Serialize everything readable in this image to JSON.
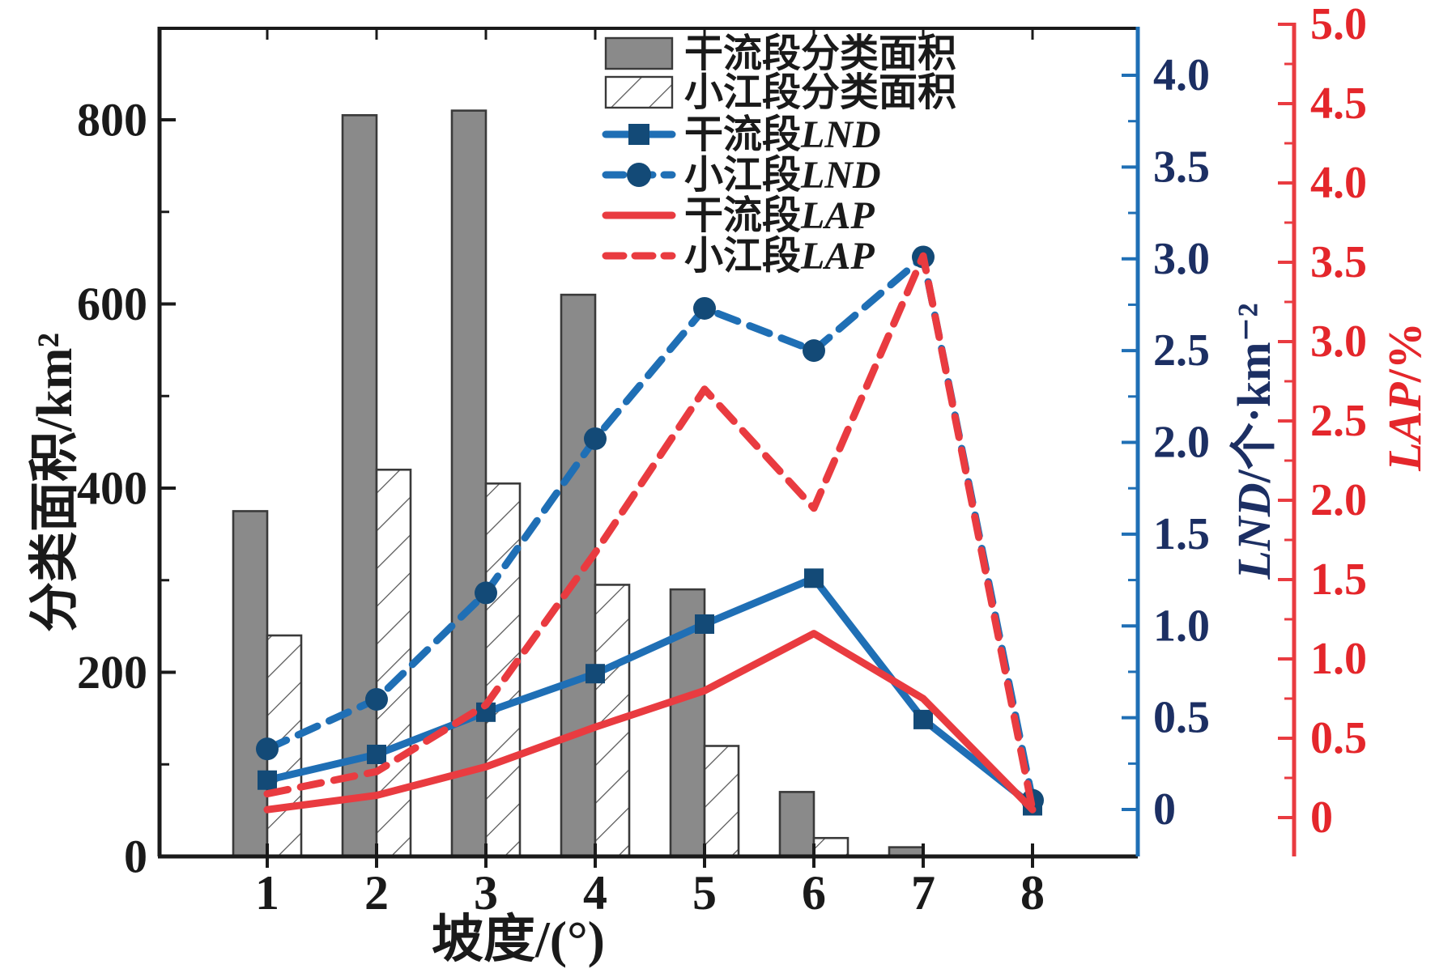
{
  "figure": {
    "background": "#ffffff",
    "xlabel": "坡度/(°)",
    "left_axis_label": "分类面积/km²",
    "blue_axis_label": "LND/个·km⁻²",
    "red_axis_label": "LAP/%"
  },
  "colors": {
    "blue_line": "#1f6fb5",
    "blue_marker": "#134a77",
    "navy_text": "#1c2f63",
    "red_line": "#e93b40",
    "red_text": "#e4262b",
    "gray_bar": "#8a8a8a",
    "bar_border": "#3a3a3a",
    "black": "#1a1a1a",
    "hatch_line": "#555555"
  },
  "chart_data": {
    "type": "combo (grouped bars + lines, three y-axes)",
    "title": "",
    "xlabel": "坡度/(°)",
    "categories": [
      1,
      2,
      3,
      4,
      5,
      6,
      7,
      8
    ],
    "x_tick_labels": [
      "1",
      "2",
      "3",
      "4",
      "5",
      "6",
      "7",
      "8"
    ],
    "axes": {
      "left": {
        "label": "分类面积/km²",
        "range": [
          0,
          900
        ],
        "major_ticks": [
          0,
          200,
          400,
          600,
          800
        ],
        "tick_labels": [
          "0",
          "200",
          "400",
          "600",
          "800"
        ],
        "minor_step": 100,
        "color": "#1a1a1a"
      },
      "right_blue": {
        "label": "LND/个·km⁻²",
        "range": [
          0,
          4.25
        ],
        "major_ticks": [
          0,
          0.5,
          1.0,
          1.5,
          2.0,
          2.5,
          3.0,
          3.5,
          4.0
        ],
        "tick_labels": [
          "0",
          "0.5",
          "1.0",
          "1.5",
          "2.0",
          "2.5",
          "3.0",
          "3.5",
          "4.0"
        ],
        "minor_step": 0.25,
        "color": "#1c2f63"
      },
      "right_red": {
        "label": "LAP/%",
        "range": [
          0,
          5.0
        ],
        "major_ticks": [
          0,
          0.5,
          1.0,
          1.5,
          2.0,
          2.5,
          3.0,
          3.5,
          4.0,
          4.5,
          5.0
        ],
        "tick_labels": [
          "0",
          "0.5",
          "1.0",
          "1.5",
          "2.0",
          "2.5",
          "3.0",
          "3.5",
          "4.0",
          "4.5",
          "5.0"
        ],
        "minor_step": 0.25,
        "color": "#e4262b"
      }
    },
    "grid": false,
    "legend_position": "top-center-inside",
    "series": [
      {
        "key": "mainstream-area",
        "name": "干流段分类面积",
        "type": "bar",
        "style": "solid-gray",
        "axis": "left",
        "values": [
          375,
          805,
          810,
          610,
          290,
          70,
          10,
          0
        ]
      },
      {
        "key": "xiaojiang-area",
        "name": "小江段分类面积",
        "type": "bar",
        "style": "hatched-white",
        "axis": "left",
        "values": [
          240,
          420,
          405,
          295,
          120,
          20,
          0,
          0
        ]
      },
      {
        "key": "mainstream-lnd",
        "name": "干流段LND",
        "type": "line",
        "line_style": "solid",
        "marker": "square",
        "color_key": "blue",
        "axis": "right_blue",
        "values": [
          0.16,
          0.3,
          0.53,
          0.74,
          1.01,
          1.26,
          0.49,
          0.02
        ]
      },
      {
        "key": "xiaojiang-lnd",
        "name": "小江段LND",
        "type": "line",
        "line_style": "dashed",
        "marker": "circle",
        "color_key": "blue",
        "axis": "right_blue",
        "values": [
          0.33,
          0.6,
          1.18,
          2.02,
          2.73,
          2.5,
          3.01,
          0.05
        ]
      },
      {
        "key": "mainstream-lap",
        "name": "干流段LAP",
        "type": "line",
        "line_style": "solid",
        "marker": "none",
        "color_key": "red",
        "axis": "right_red",
        "values": [
          0.05,
          0.14,
          0.32,
          0.57,
          0.8,
          1.16,
          0.75,
          0.05
        ]
      },
      {
        "key": "xiaojiang-lap",
        "name": "小江段LAP",
        "type": "line",
        "line_style": "dashed",
        "marker": "none",
        "color_key": "red",
        "axis": "right_red",
        "values": [
          0.15,
          0.29,
          0.71,
          1.67,
          2.7,
          1.95,
          3.54,
          0.05
        ]
      }
    ]
  }
}
